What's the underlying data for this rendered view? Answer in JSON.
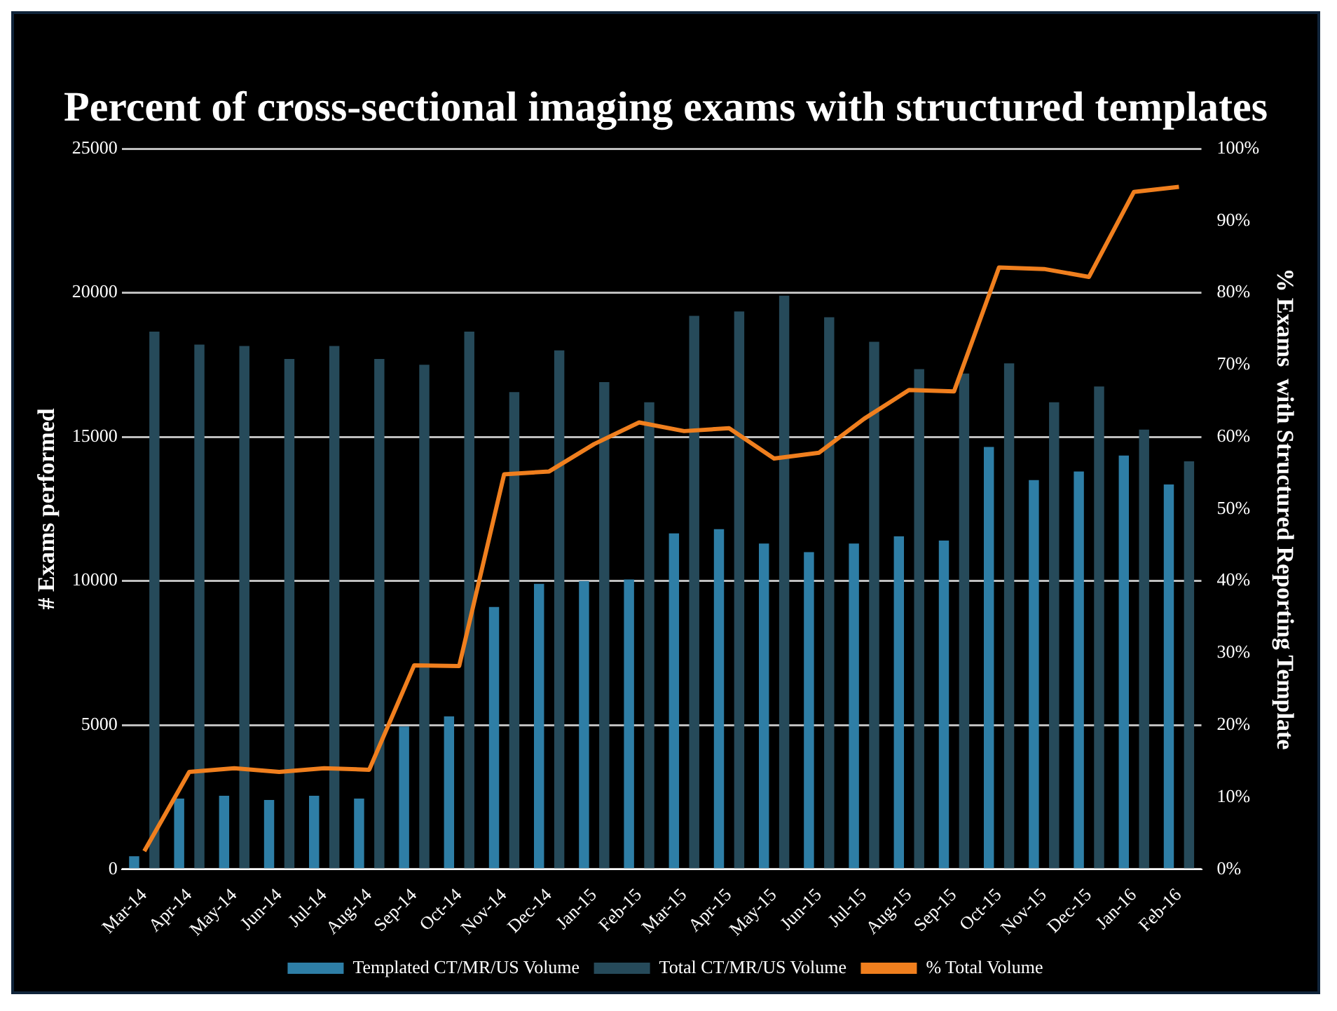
{
  "chart_data": {
    "type": "bar",
    "title": "Percent of cross-sectional imaging exams with structured templates",
    "ylabel": "# Exams performed",
    "y2label": "% Exams  with Structured Reporting Template",
    "categories": [
      "Mar-14",
      "Apr-14",
      "May-14",
      "Jun-14",
      "Jul-14",
      "Aug-14",
      "Sep-14",
      "Oct-14",
      "Nov-14",
      "Dec-14",
      "Jan-15",
      "Feb-15",
      "Mar-15",
      "Apr-15",
      "May-15",
      "Jun-15",
      "Jul-15",
      "Aug-15",
      "Sep-15",
      "Oct-15",
      "Nov-15",
      "Dec-15",
      "Jan-16",
      "Feb-16"
    ],
    "series": [
      {
        "name": "Templated CT/MR/US Volume",
        "color": "#2e7ea6",
        "values": [
          450,
          2450,
          2550,
          2400,
          2550,
          2450,
          4950,
          5300,
          9100,
          9900,
          10000,
          10050,
          11650,
          11800,
          11300,
          11000,
          11300,
          11550,
          11400,
          14650,
          13500,
          13800,
          14350,
          13350
        ]
      },
      {
        "name": "Total CT/MR/US Volume",
        "color": "#264a5a",
        "values": [
          18650,
          18200,
          18150,
          17700,
          18150,
          17700,
          17500,
          18650,
          16550,
          18000,
          16900,
          16200,
          19200,
          19350,
          19900,
          19150,
          18300,
          17350,
          17200,
          17550,
          16200,
          16750,
          15250,
          14150
        ]
      },
      {
        "name": "% Total Volume",
        "type": "line",
        "axis": "y2",
        "color": "#f07f1e",
        "values": [
          2.5,
          13.5,
          14,
          13.5,
          14,
          13.8,
          28.3,
          28.2,
          54.8,
          55.2,
          59,
          62,
          60.8,
          61.2,
          57,
          57.8,
          62.5,
          66.5,
          66.3,
          83.5,
          83.3,
          82.2,
          94,
          94.7
        ]
      }
    ],
    "ylim": [
      0,
      25000
    ],
    "yticks": [
      0,
      5000,
      10000,
      15000,
      20000,
      25000
    ],
    "y2lim": [
      0,
      100
    ],
    "y2ticks": [
      {
        "value": 0,
        "label": "0%"
      },
      {
        "value": 10,
        "label": "10%"
      },
      {
        "value": 20,
        "label": "20%"
      },
      {
        "value": 30,
        "label": "30%"
      },
      {
        "value": 40,
        "label": "40%"
      },
      {
        "value": 50,
        "label": "50%"
      },
      {
        "value": 60,
        "label": "60%"
      },
      {
        "value": 70,
        "label": "70%"
      },
      {
        "value": 80,
        "label": "80%"
      },
      {
        "value": 90,
        "label": "90%"
      },
      {
        "value": 100,
        "label": "100%"
      }
    ],
    "grid": "y",
    "legend": "bottom",
    "marker": "none"
  }
}
